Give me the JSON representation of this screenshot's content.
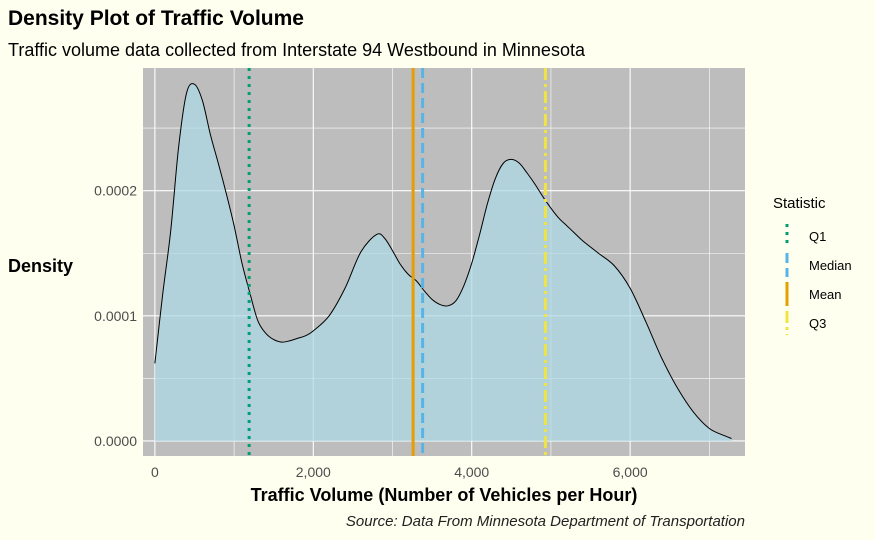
{
  "chart_data": {
    "type": "area",
    "title": "Density Plot of Traffic Volume",
    "subtitle": "Traffic volume data collected from Interstate 94 Westbound in Minnesota",
    "caption": "Source: Data From Minnesota Department of Transportation",
    "xlabel": "Traffic Volume (Number of Vehicles per Hour)",
    "ylabel": "Density",
    "xlim": [
      -150,
      7450
    ],
    "ylim": [
      -1.2e-05,
      0.000298
    ],
    "x_ticks": [
      0,
      2000,
      4000,
      6000
    ],
    "x_tick_labels": [
      "0",
      "2,000",
      "4,000",
      "6,000"
    ],
    "y_ticks": [
      0.0,
      0.0001,
      0.0002
    ],
    "y_tick_labels": [
      "0.0000",
      "0.0001",
      "0.0002"
    ],
    "grid": true,
    "background": "#bdbdbd",
    "fill_color": "#add8e6",
    "series": [
      {
        "x": [
          0,
          100,
          200,
          300,
          400,
          500,
          600,
          700,
          800,
          900,
          1000,
          1100,
          1200,
          1300,
          1400,
          1500,
          1600,
          1700,
          1800,
          1900,
          2000,
          2200,
          2400,
          2600,
          2800,
          2900,
          3000,
          3100,
          3200,
          3300,
          3400,
          3500,
          3600,
          3700,
          3800,
          3900,
          4000,
          4100,
          4200,
          4300,
          4400,
          4500,
          4600,
          4700,
          4800,
          4900,
          5000,
          5100,
          5200,
          5300,
          5400,
          5600,
          5800,
          6000,
          6200,
          6400,
          6600,
          6800,
          7000,
          7200,
          7280
        ],
        "y": [
          6.2e-05,
          0.000118,
          0.000168,
          0.000235,
          0.000278,
          0.000285,
          0.000272,
          0.000245,
          0.000222,
          0.000198,
          0.000172,
          0.000142,
          0.000118,
          9.6e-05,
          8.6e-05,
          8.1e-05,
          7.9e-05,
          8e-05,
          8.2e-05,
          8.4e-05,
          8.8e-05,
          0.0001,
          0.000122,
          0.000151,
          0.000165,
          0.000162,
          0.000152,
          0.000141,
          0.000133,
          0.000128,
          0.00012,
          0.000113,
          0.000109,
          0.000108,
          0.000112,
          0.000124,
          0.000142,
          0.000165,
          0.00019,
          0.00021,
          0.000222,
          0.000225,
          0.000222,
          0.000214,
          0.000205,
          0.000195,
          0.000186,
          0.000178,
          0.000172,
          0.000166,
          0.00016,
          0.00015,
          0.00014,
          0.000122,
          9.5e-05,
          6.6e-05,
          4.2e-05,
          2.3e-05,
          1e-05,
          4e-06,
          2e-06
        ]
      }
    ],
    "vlines": [
      {
        "name": "Q1",
        "x": 1190,
        "color": "#009E73",
        "dash": "3,5",
        "width": 3
      },
      {
        "name": "Median",
        "x": 3380,
        "color": "#56B4E9",
        "dash": "10,5",
        "width": 3
      },
      {
        "name": "Mean",
        "x": 3260,
        "color": "#E69F00",
        "dash": "",
        "width": 3
      },
      {
        "name": "Q3",
        "x": 4930,
        "color": "#F0E442",
        "dash": "12,4,3,4",
        "width": 3
      }
    ],
    "legend": {
      "title": "Statistic",
      "placement": "right",
      "items": [
        "Q1",
        "Median",
        "Mean",
        "Q3"
      ]
    }
  }
}
